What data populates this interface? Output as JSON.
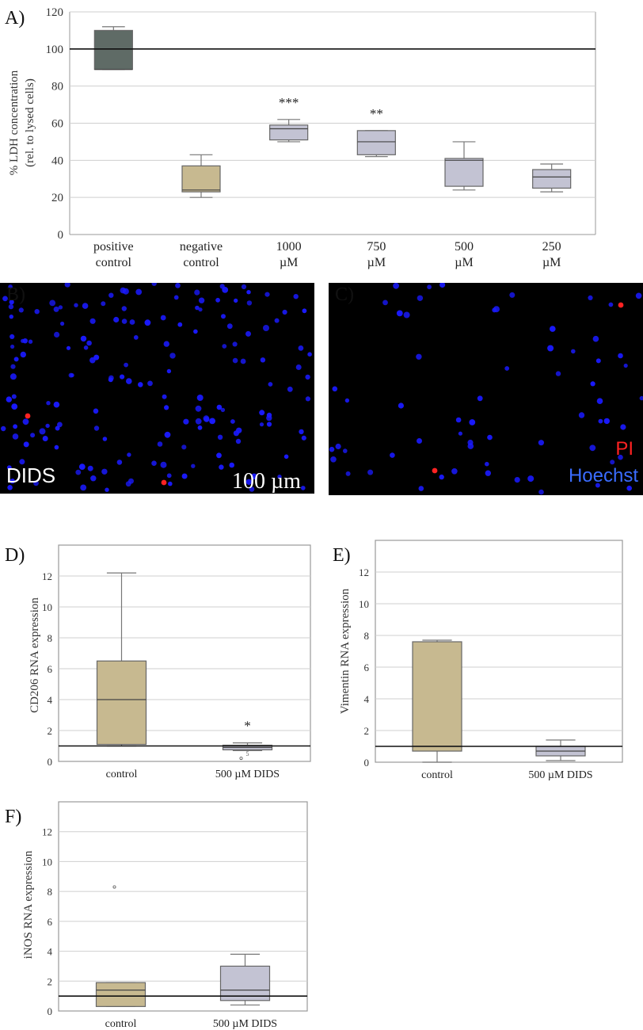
{
  "figure": {
    "panel_A_letter": "A)",
    "panel_B_letter": "B)",
    "panel_C_letter": "C)",
    "panel_D_letter": "D)",
    "panel_E_letter": "E)",
    "panel_F_letter": "F)"
  },
  "micrographs": {
    "B": {
      "label": "DIDS",
      "scale_bar_label": "100 µm"
    },
    "C": {
      "legend_pi": "PI",
      "legend_hoechst": "Hoechst"
    },
    "colors": {
      "background": "#000000",
      "hoechst": "#1a1aff",
      "pi": "#ff2222"
    }
  },
  "chart_data": [
    {
      "id": "A",
      "type": "box",
      "ylabel": "% LDH concentration",
      "ylabel2": "(rel. to lysed cells)",
      "ylim": [
        0,
        120
      ],
      "yticks": [
        0,
        20,
        40,
        60,
        80,
        100,
        120
      ],
      "reference_line": 100,
      "grid": true,
      "categories": [
        [
          "positive",
          "control"
        ],
        [
          "negative",
          "control"
        ],
        [
          "1000",
          "µM"
        ],
        [
          "750",
          "µM"
        ],
        [
          "500",
          "µM"
        ],
        [
          "250",
          "µM"
        ]
      ],
      "boxes": [
        {
          "min": 89,
          "q1": 89,
          "median": 89,
          "q3": 110,
          "max": 112,
          "color": "#5f6b66",
          "sig": ""
        },
        {
          "min": 20,
          "q1": 23,
          "median": 24,
          "q3": 37,
          "max": 43,
          "color": "#c7b990",
          "sig": ""
        },
        {
          "min": 50,
          "q1": 51,
          "median": 57,
          "q3": 59,
          "max": 62,
          "color": "#c3c3d3",
          "sig": "***"
        },
        {
          "min": 42,
          "q1": 43,
          "median": 50,
          "q3": 56,
          "max": 56,
          "color": "#c3c3d3",
          "sig": "**"
        },
        {
          "min": 24,
          "q1": 26,
          "median": 40,
          "q3": 41,
          "max": 50,
          "color": "#c3c3d3",
          "sig": ""
        },
        {
          "min": 23,
          "q1": 25,
          "median": 31,
          "q3": 35,
          "max": 38,
          "color": "#c3c3d3",
          "sig": ""
        }
      ]
    },
    {
      "id": "D",
      "type": "box",
      "ylabel": "CD206 RNA expression",
      "ylim": [
        0,
        14
      ],
      "yticks": [
        0,
        2,
        4,
        6,
        8,
        10,
        12
      ],
      "reference_line": 1,
      "grid": true,
      "categories": [
        [
          "control"
        ],
        [
          "500 µM DIDS"
        ]
      ],
      "boxes": [
        {
          "min": 1.0,
          "q1": 1.1,
          "median": 4.0,
          "q3": 6.5,
          "max": 12.2,
          "color": "#c7b990",
          "sig": ""
        },
        {
          "min": 0.7,
          "q1": 0.75,
          "median": 0.9,
          "q3": 1.05,
          "max": 1.2,
          "color": "#c3c3d3",
          "sig": "*",
          "outliers": [
            0.2
          ],
          "outlier_label": "5"
        }
      ]
    },
    {
      "id": "E",
      "type": "box",
      "ylabel": "Vimentin RNA expression",
      "ylim": [
        0,
        14
      ],
      "yticks": [
        0,
        2,
        4,
        6,
        8,
        10,
        12
      ],
      "reference_line": 1,
      "grid": true,
      "categories": [
        [
          "control"
        ],
        [
          "500 µM DIDS"
        ]
      ],
      "boxes": [
        {
          "min": 0.0,
          "q1": 0.7,
          "median": 1.0,
          "q3": 7.6,
          "max": 7.7,
          "color": "#c7b990",
          "sig": ""
        },
        {
          "min": 0.1,
          "q1": 0.4,
          "median": 0.7,
          "q3": 1.0,
          "max": 1.4,
          "color": "#c3c3d3",
          "sig": ""
        }
      ]
    },
    {
      "id": "F",
      "type": "box",
      "ylabel": "iNOS RNA expression",
      "ylim": [
        0,
        14
      ],
      "yticks": [
        0,
        2,
        4,
        6,
        8,
        10,
        12
      ],
      "reference_line": 1,
      "grid": true,
      "categories": [
        [
          "control"
        ],
        [
          "500 µM DIDS"
        ]
      ],
      "boxes": [
        {
          "min": 0.3,
          "q1": 0.3,
          "median": 1.4,
          "q3": 1.9,
          "max": 1.9,
          "color": "#c7b990",
          "sig": "",
          "outliers": [
            8.3
          ]
        },
        {
          "min": 0.4,
          "q1": 0.7,
          "median": 1.4,
          "q3": 3.0,
          "max": 3.8,
          "color": "#c3c3d3",
          "sig": ""
        }
      ]
    }
  ]
}
